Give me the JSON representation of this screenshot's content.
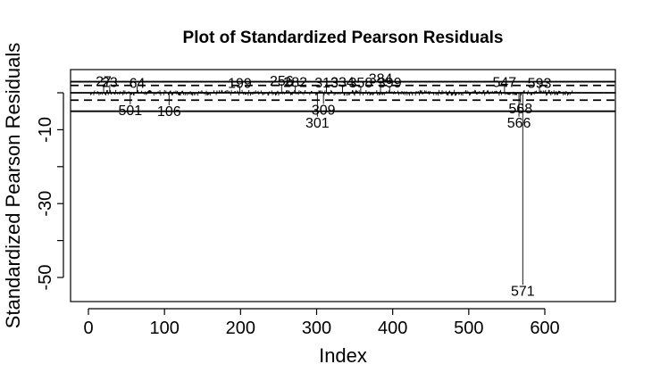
{
  "chart_data": {
    "type": "line",
    "title": "Plot of Standardized Pearson Residuals",
    "xlabel": "Index",
    "ylabel": "Standardized Pearson Residuals",
    "xlim": [
      0,
      640
    ],
    "ylim": [
      -55,
      6
    ],
    "x_ticks": [
      0,
      100,
      200,
      300,
      400,
      500,
      600
    ],
    "y_ticks": [
      -50,
      -30,
      -10
    ],
    "series_style": "vertical spikes (type h)",
    "n": 638,
    "reference_lines": [
      {
        "y": 3,
        "style": "solid"
      },
      {
        "y": 2,
        "style": "dashed"
      },
      {
        "y": 0,
        "style": "solid"
      },
      {
        "y": -2,
        "style": "dashed"
      },
      {
        "y": -5,
        "style": "solid"
      }
    ],
    "labeled_points": [
      {
        "label": "27",
        "x": 20,
        "y": 2.3
      },
      {
        "label": "23",
        "x": 28,
        "y": 2.1
      },
      {
        "label": "64",
        "x": 64,
        "y": 1.8
      },
      {
        "label": "501",
        "x": 55,
        "y": -3.2
      },
      {
        "label": "106",
        "x": 106,
        "y": -3.4
      },
      {
        "label": "199",
        "x": 199,
        "y": 1.8
      },
      {
        "label": "256",
        "x": 254,
        "y": 2.4
      },
      {
        "label": "282",
        "x": 272,
        "y": 2.1
      },
      {
        "label": "313",
        "x": 313,
        "y": 1.9
      },
      {
        "label": "334",
        "x": 334,
        "y": 2.1
      },
      {
        "label": "358",
        "x": 358,
        "y": 1.9
      },
      {
        "label": "384",
        "x": 384,
        "y": 3.0
      },
      {
        "label": "399",
        "x": 396,
        "y": 1.9
      },
      {
        "label": "309",
        "x": 309,
        "y": -3.0
      },
      {
        "label": "301",
        "x": 301,
        "y": -6.5
      },
      {
        "label": "547",
        "x": 547,
        "y": 2.0
      },
      {
        "label": "593",
        "x": 593,
        "y": 1.8
      },
      {
        "label": "568",
        "x": 568,
        "y": -2.7
      },
      {
        "label": "566",
        "x": 566,
        "y": -6.5
      },
      {
        "label": "571",
        "x": 571,
        "y": -52.0
      }
    ]
  }
}
